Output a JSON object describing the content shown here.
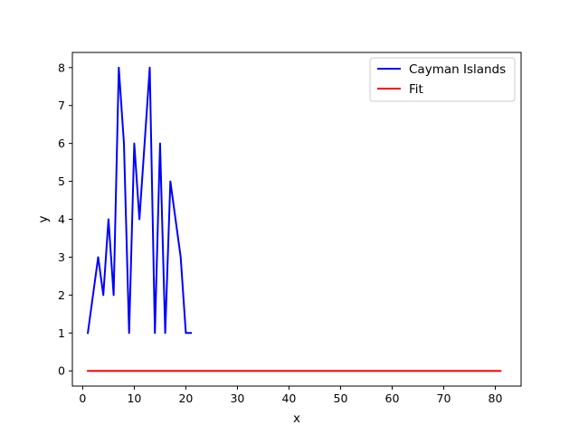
{
  "chart_data": {
    "type": "line",
    "title": "",
    "xlabel": "x",
    "ylabel": "y",
    "xlim": [
      -2,
      85
    ],
    "ylim": [
      -0.4,
      8.4
    ],
    "xticks": [
      0,
      10,
      20,
      30,
      40,
      50,
      60,
      70,
      80
    ],
    "yticks": [
      0,
      1,
      2,
      3,
      4,
      5,
      6,
      7,
      8
    ],
    "grid": false,
    "legend_position": "top-right",
    "series": [
      {
        "name": "Cayman Islands",
        "color": "#0000ff",
        "x": [
          1,
          2,
          3,
          4,
          5,
          6,
          7,
          8,
          9,
          10,
          11,
          12,
          13,
          14,
          15,
          16,
          17,
          18,
          19,
          20,
          21
        ],
        "y": [
          1,
          2,
          3,
          2,
          4,
          2,
          8,
          6,
          1,
          6,
          4,
          6,
          8,
          1,
          6,
          1,
          5,
          4,
          3,
          1,
          1
        ]
      },
      {
        "name": "Fit",
        "color": "#ff0000",
        "x": [
          1,
          81
        ],
        "y": [
          0,
          0
        ]
      }
    ]
  }
}
